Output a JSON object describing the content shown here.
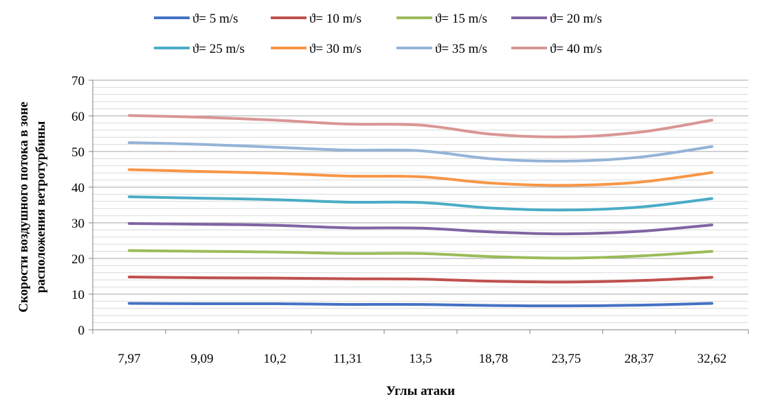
{
  "chart_data": {
    "type": "line",
    "xlabel": "Углы атаки",
    "ylabel_lines": [
      "Скорости воздушного потока в зоне",
      "расположения ветротурбины"
    ],
    "categories": [
      "7,97",
      "9,09",
      "10,2",
      "11,31",
      "13,5",
      "18,78",
      "23,75",
      "28,37",
      "32,62"
    ],
    "ylim": [
      0,
      70
    ],
    "y_ticks": [
      0,
      10,
      20,
      30,
      40,
      50,
      60,
      70
    ],
    "grid": true,
    "minor_grid": true,
    "legend_position": "top",
    "series": [
      {
        "name": "ϑ= 5 m/s",
        "color": "#4472C4",
        "values": [
          7.4,
          7.3,
          7.3,
          7.1,
          7.1,
          6.8,
          6.7,
          6.9,
          7.4
        ]
      },
      {
        "name": "ϑ= 10 m/s",
        "color": "#C0504D",
        "values": [
          14.8,
          14.6,
          14.5,
          14.3,
          14.2,
          13.6,
          13.4,
          13.8,
          14.7
        ]
      },
      {
        "name": "ϑ= 15 m/s",
        "color": "#9BBB59",
        "values": [
          22.2,
          22.0,
          21.8,
          21.4,
          21.4,
          20.5,
          20.1,
          20.7,
          22.0
        ]
      },
      {
        "name": "ϑ= 20 m/s",
        "color": "#8064A2",
        "values": [
          29.8,
          29.6,
          29.3,
          28.6,
          28.5,
          27.4,
          26.9,
          27.6,
          29.4
        ]
      },
      {
        "name": "ϑ= 25 m/s",
        "color": "#4BACC6",
        "values": [
          37.3,
          36.9,
          36.5,
          35.8,
          35.7,
          34.1,
          33.6,
          34.4,
          36.8
        ]
      },
      {
        "name": "ϑ= 30 m/s",
        "color": "#F79646",
        "values": [
          44.9,
          44.4,
          43.9,
          43.1,
          42.9,
          41.1,
          40.5,
          41.4,
          44.1
        ]
      },
      {
        "name": "ϑ= 35 m/s",
        "color": "#95B3D7",
        "values": [
          52.5,
          52.0,
          51.2,
          50.4,
          50.2,
          47.9,
          47.3,
          48.4,
          51.4
        ]
      },
      {
        "name": "ϑ= 40 m/s",
        "color": "#D99694",
        "values": [
          60.1,
          59.6,
          58.8,
          57.7,
          57.4,
          54.8,
          54.1,
          55.4,
          58.8
        ]
      }
    ]
  }
}
